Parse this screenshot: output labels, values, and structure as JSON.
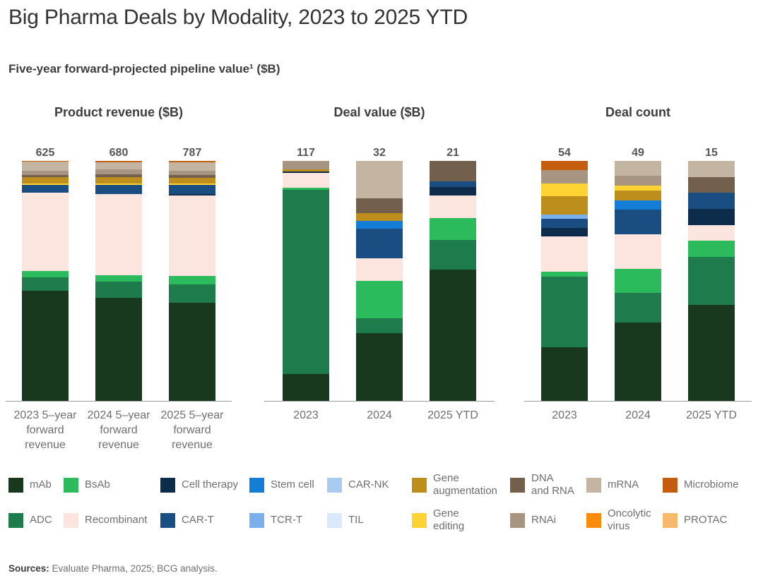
{
  "title": "Big Pharma Deals by Modality, 2023 to 2025 YTD",
  "subtitle": "Five-year forward-projected pipeline value¹ ($B)",
  "palette": {
    "mAb": "#18391e",
    "ADC": "#1e7b4b",
    "BsAb": "#2bba5c",
    "Recombinant": "#fbe5de",
    "Cell therapy": "#0d2b4a",
    "CAR-T": "#1a4d82",
    "Stem cell": "#147dd6",
    "TCR-T": "#79b0ec",
    "CAR-NK": "#a9cbf2",
    "TIL": "#d9e9fb",
    "Gene augmentation": "#bd8e1b",
    "Gene editing": "#fdd233",
    "DNA and RNA": "#73604c",
    "RNAi": "#a79481",
    "mRNA": "#c3b5a2",
    "Microbiome": "#c45d0d",
    "Oncolytic virus": "#fb8b0e",
    "PROTAC": "#f8b96d"
  },
  "chart_data": [
    {
      "type": "bar",
      "stacking": "100%-stacked, totals labeled above bars",
      "title": "Product revenue ($B)",
      "value_unit": "$B",
      "bars": [
        {
          "label": "2023 5–year forward revenue",
          "total": "625",
          "segments": [
            {
              "modality": "mAb",
              "value": 287
            },
            {
              "modality": "ADC",
              "value": 35
            },
            {
              "modality": "BsAb",
              "value": 17
            },
            {
              "modality": "Recombinant",
              "value": 204
            },
            {
              "modality": "CAR-T",
              "value": 20
            },
            {
              "modality": "Gene editing",
              "value": 4
            },
            {
              "modality": "Gene augmentation",
              "value": 15
            },
            {
              "modality": "DNA and RNA",
              "value": 7
            },
            {
              "modality": "RNAi",
              "value": 11
            },
            {
              "modality": "mRNA",
              "value": 24
            },
            {
              "modality": "Microbiome",
              "value": 1
            }
          ]
        },
        {
          "label": "2024 5–year forward revenue",
          "total": "680",
          "segments": [
            {
              "modality": "mAb",
              "value": 292
            },
            {
              "modality": "ADC",
              "value": 46
            },
            {
              "modality": "BsAb",
              "value": 18
            },
            {
              "modality": "Recombinant",
              "value": 230
            },
            {
              "modality": "CAR-T",
              "value": 26
            },
            {
              "modality": "Gene editing",
              "value": 4
            },
            {
              "modality": "Gene augmentation",
              "value": 18
            },
            {
              "modality": "DNA and RNA",
              "value": 8
            },
            {
              "modality": "RNAi",
              "value": 14
            },
            {
              "modality": "mRNA",
              "value": 20
            },
            {
              "modality": "Microbiome",
              "value": 4
            }
          ]
        },
        {
          "label": "2025 5–year forward revenue",
          "total": "787",
          "segments": [
            {
              "modality": "mAb",
              "value": 321
            },
            {
              "modality": "ADC",
              "value": 60
            },
            {
              "modality": "BsAb",
              "value": 28
            },
            {
              "modality": "Recombinant",
              "value": 265
            },
            {
              "modality": "Cell therapy",
              "value": 5
            },
            {
              "modality": "CAR-T",
              "value": 30
            },
            {
              "modality": "Gene editing",
              "value": 5
            },
            {
              "modality": "Gene augmentation",
              "value": 18
            },
            {
              "modality": "DNA and RNA",
              "value": 9
            },
            {
              "modality": "RNAi",
              "value": 14
            },
            {
              "modality": "mRNA",
              "value": 28
            },
            {
              "modality": "Microbiome",
              "value": 4
            }
          ]
        }
      ]
    },
    {
      "type": "bar",
      "stacking": "100%-stacked, totals labeled above bars",
      "title": "Deal value ($B)",
      "value_unit": "$B",
      "bars": [
        {
          "label": "2023",
          "total": "117",
          "segments": [
            {
              "modality": "mAb",
              "value": 13
            },
            {
              "modality": "ADC",
              "value": 90
            },
            {
              "modality": "BsAb",
              "value": 1
            },
            {
              "modality": "Recombinant",
              "value": 7
            },
            {
              "modality": "Cell therapy",
              "value": 1
            },
            {
              "modality": "Gene augmentation",
              "value": 1
            },
            {
              "modality": "RNAi",
              "value": 4
            }
          ]
        },
        {
          "label": "2024",
          "total": "32",
          "segments": [
            {
              "modality": "mAb",
              "value": 9
            },
            {
              "modality": "ADC",
              "value": 2
            },
            {
              "modality": "BsAb",
              "value": 5
            },
            {
              "modality": "Recombinant",
              "value": 3
            },
            {
              "modality": "CAR-T",
              "value": 4
            },
            {
              "modality": "Stem cell",
              "value": 1
            },
            {
              "modality": "Gene augmentation",
              "value": 1
            },
            {
              "modality": "DNA and RNA",
              "value": 2
            },
            {
              "modality": "mRNA",
              "value": 5
            }
          ]
        },
        {
          "label": "2025 YTD",
          "total": "21",
          "segments": [
            {
              "modality": "mAb",
              "value": 11.5
            },
            {
              "modality": "ADC",
              "value": 2.6
            },
            {
              "modality": "BsAb",
              "value": 1.9
            },
            {
              "modality": "Recombinant",
              "value": 2
            },
            {
              "modality": "Cell therapy",
              "value": 0.7
            },
            {
              "modality": "CAR-T",
              "value": 0.5
            },
            {
              "modality": "DNA and RNA",
              "value": 1.8
            }
          ]
        }
      ]
    },
    {
      "type": "bar",
      "stacking": "100%-stacked, totals labeled above bars",
      "title": "Deal count",
      "value_unit": "deals",
      "bars": [
        {
          "label": "2023",
          "total": "54",
          "segments": [
            {
              "modality": "mAb",
              "value": 12
            },
            {
              "modality": "ADC",
              "value": 16
            },
            {
              "modality": "BsAb",
              "value": 1
            },
            {
              "modality": "Recombinant",
              "value": 8
            },
            {
              "modality": "Cell therapy",
              "value": 2
            },
            {
              "modality": "CAR-T",
              "value": 2
            },
            {
              "modality": "TCR-T",
              "value": 1
            },
            {
              "modality": "Gene augmentation",
              "value": 4
            },
            {
              "modality": "Gene editing",
              "value": 3
            },
            {
              "modality": "RNAi",
              "value": 3
            },
            {
              "modality": "Microbiome",
              "value": 2
            }
          ]
        },
        {
          "label": "2024",
          "total": "49",
          "segments": [
            {
              "modality": "mAb",
              "value": 16
            },
            {
              "modality": "ADC",
              "value": 6
            },
            {
              "modality": "BsAb",
              "value": 5
            },
            {
              "modality": "Recombinant",
              "value": 7
            },
            {
              "modality": "CAR-T",
              "value": 5
            },
            {
              "modality": "Stem cell",
              "value": 2
            },
            {
              "modality": "Gene augmentation",
              "value": 2
            },
            {
              "modality": "Gene editing",
              "value": 1
            },
            {
              "modality": "RNAi",
              "value": 2
            },
            {
              "modality": "mRNA",
              "value": 3
            }
          ]
        },
        {
          "label": "2025 YTD",
          "total": "15",
          "segments": [
            {
              "modality": "mAb",
              "value": 6
            },
            {
              "modality": "ADC",
              "value": 3
            },
            {
              "modality": "BsAb",
              "value": 1
            },
            {
              "modality": "Recombinant",
              "value": 1
            },
            {
              "modality": "Cell therapy",
              "value": 1
            },
            {
              "modality": "CAR-T",
              "value": 1
            },
            {
              "modality": "DNA and RNA",
              "value": 1
            },
            {
              "modality": "mRNA",
              "value": 1
            }
          ]
        }
      ]
    }
  ],
  "legend": {
    "rows": [
      [
        {
          "modality": "mAb",
          "label": "mAb"
        },
        {
          "modality": "BsAb",
          "label": "BsAb"
        },
        {
          "modality": "Cell therapy",
          "label": "Cell therapy"
        },
        {
          "modality": "Stem cell",
          "label": "Stem cell"
        },
        {
          "modality": "CAR-NK",
          "label": "CAR-NK"
        },
        {
          "modality": "Gene augmentation",
          "label": "Gene\naugmentation"
        },
        {
          "modality": "DNA and RNA",
          "label": "DNA\nand RNA"
        },
        {
          "modality": "mRNA",
          "label": "mRNA"
        },
        {
          "modality": "Microbiome",
          "label": "Microbiome"
        }
      ],
      [
        {
          "modality": "ADC",
          "label": "ADC"
        },
        {
          "modality": "Recombinant",
          "label": "Recombinant"
        },
        {
          "modality": "CAR-T",
          "label": "CAR-T"
        },
        {
          "modality": "TCR-T",
          "label": "TCR-T"
        },
        {
          "modality": "TIL",
          "label": "TIL"
        },
        {
          "modality": "Gene editing",
          "label": "Gene\nediting"
        },
        {
          "modality": "RNAi",
          "label": "RNAi"
        },
        {
          "modality": "Oncolytic virus",
          "label": "Oncolytic\nvirus"
        },
        {
          "modality": "PROTAC",
          "label": "PROTAC"
        }
      ]
    ]
  },
  "sources": {
    "label": "Sources:",
    "text": " Evaluate Pharma, 2025; BCG analysis."
  }
}
